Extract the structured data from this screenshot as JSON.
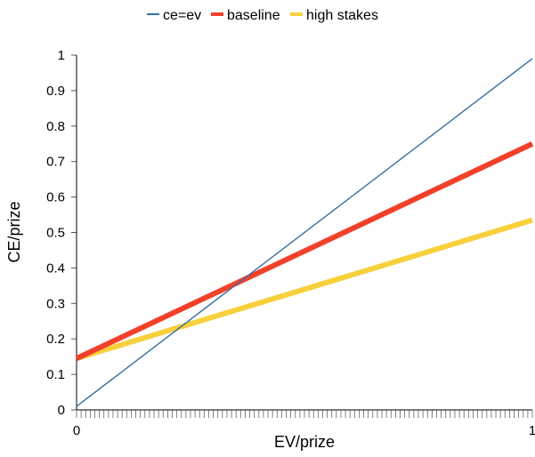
{
  "chart_data": {
    "type": "line",
    "title": "",
    "xlabel": "EV/prize",
    "ylabel": "CE/prize",
    "xlim": [
      0,
      1
    ],
    "ylim": [
      0,
      1
    ],
    "x_tick_labels": [
      "0",
      "1"
    ],
    "y_tick_labels": [
      "0",
      "0.1",
      "0.2",
      "0.3",
      "0.4",
      "0.5",
      "0.6",
      "0.7",
      "0.8",
      "0.9",
      "1"
    ],
    "grid": false,
    "legend_position": "top",
    "series": [
      {
        "name": "ce=ev",
        "color": "#3a6ea5",
        "x": [
          0,
          1
        ],
        "y": [
          0.01,
          0.99
        ]
      },
      {
        "name": "baseline",
        "color": "#f2402a",
        "x": [
          0,
          1
        ],
        "y": [
          0.145,
          0.75
        ]
      },
      {
        "name": "high stakes",
        "color": "#f7d03c",
        "x": [
          0,
          1
        ],
        "y": [
          0.145,
          0.535
        ]
      }
    ]
  }
}
